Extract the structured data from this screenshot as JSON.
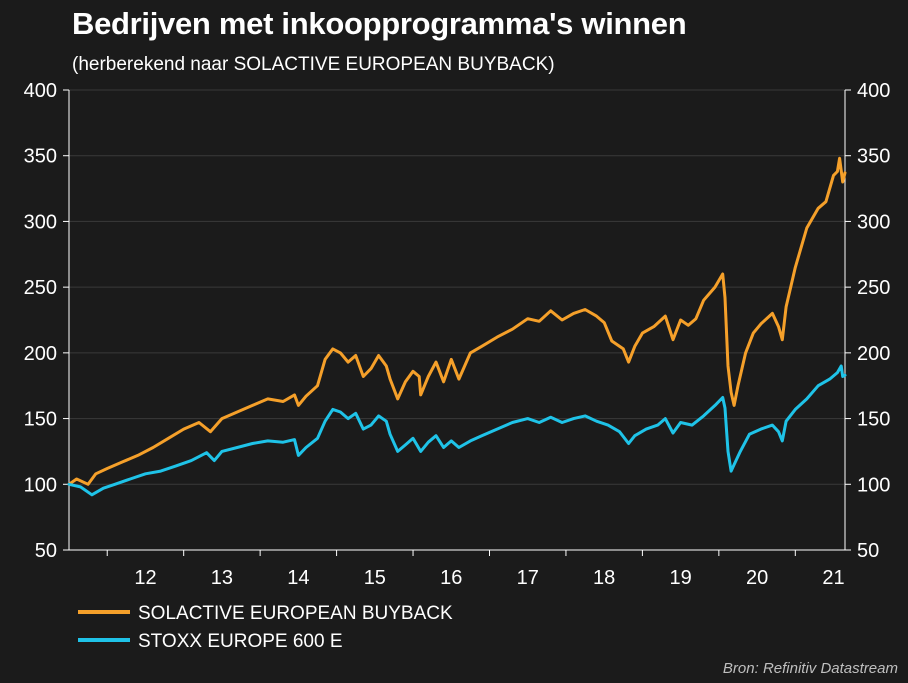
{
  "title": "Bedrijven met inkoopprogramma's winnen",
  "subtitle": "(herberekend naar SOLACTIVE EUROPEAN BUYBACK)",
  "source": "Bron: Refinitiv Datastream",
  "chart_data": {
    "type": "line",
    "x_ticks": [
      "12",
      "13",
      "14",
      "15",
      "16",
      "17",
      "18",
      "19",
      "20",
      "21"
    ],
    "xlim": [
      2011.5,
      2021.65
    ],
    "ylim": [
      50,
      400
    ],
    "y_ticks": [
      50,
      100,
      150,
      200,
      250,
      300,
      350,
      400
    ],
    "y_axis_left": true,
    "y_axis_right": true,
    "grid": true,
    "legend_position": "bottom-left",
    "series": [
      {
        "name": "SOLACTIVE EUROPEAN BUYBACK",
        "color": "#f5a02a",
        "points": [
          [
            2011.5,
            100
          ],
          [
            2011.6,
            104
          ],
          [
            2011.75,
            100
          ],
          [
            2011.85,
            108
          ],
          [
            2012.0,
            112
          ],
          [
            2012.2,
            117
          ],
          [
            2012.4,
            122
          ],
          [
            2012.6,
            128
          ],
          [
            2012.8,
            135
          ],
          [
            2013.0,
            142
          ],
          [
            2013.2,
            147
          ],
          [
            2013.35,
            140
          ],
          [
            2013.5,
            150
          ],
          [
            2013.7,
            155
          ],
          [
            2013.9,
            160
          ],
          [
            2014.1,
            165
          ],
          [
            2014.3,
            163
          ],
          [
            2014.45,
            168
          ],
          [
            2014.5,
            160
          ],
          [
            2014.6,
            167
          ],
          [
            2014.75,
            175
          ],
          [
            2014.85,
            195
          ],
          [
            2014.95,
            203
          ],
          [
            2015.05,
            200
          ],
          [
            2015.15,
            193
          ],
          [
            2015.25,
            198
          ],
          [
            2015.35,
            182
          ],
          [
            2015.45,
            188
          ],
          [
            2015.55,
            198
          ],
          [
            2015.65,
            190
          ],
          [
            2015.7,
            180
          ],
          [
            2015.8,
            165
          ],
          [
            2015.9,
            178
          ],
          [
            2016.0,
            186
          ],
          [
            2016.08,
            182
          ],
          [
            2016.1,
            168
          ],
          [
            2016.2,
            182
          ],
          [
            2016.3,
            193
          ],
          [
            2016.4,
            178
          ],
          [
            2016.5,
            195
          ],
          [
            2016.6,
            180
          ],
          [
            2016.75,
            200
          ],
          [
            2016.9,
            205
          ],
          [
            2017.1,
            212
          ],
          [
            2017.3,
            218
          ],
          [
            2017.5,
            226
          ],
          [
            2017.65,
            224
          ],
          [
            2017.8,
            232
          ],
          [
            2017.95,
            225
          ],
          [
            2018.1,
            230
          ],
          [
            2018.25,
            233
          ],
          [
            2018.4,
            228
          ],
          [
            2018.5,
            223
          ],
          [
            2018.6,
            209
          ],
          [
            2018.75,
            203
          ],
          [
            2018.82,
            193
          ],
          [
            2018.9,
            205
          ],
          [
            2019.0,
            215
          ],
          [
            2019.15,
            220
          ],
          [
            2019.3,
            228
          ],
          [
            2019.4,
            210
          ],
          [
            2019.5,
            225
          ],
          [
            2019.6,
            221
          ],
          [
            2019.7,
            226
          ],
          [
            2019.8,
            240
          ],
          [
            2019.95,
            250
          ],
          [
            2020.05,
            260
          ],
          [
            2020.08,
            242
          ],
          [
            2020.12,
            190
          ],
          [
            2020.16,
            170
          ],
          [
            2020.2,
            160
          ],
          [
            2020.25,
            175
          ],
          [
            2020.35,
            200
          ],
          [
            2020.45,
            215
          ],
          [
            2020.55,
            222
          ],
          [
            2020.7,
            230
          ],
          [
            2020.78,
            220
          ],
          [
            2020.83,
            210
          ],
          [
            2020.88,
            235
          ],
          [
            2021.0,
            265
          ],
          [
            2021.15,
            295
          ],
          [
            2021.3,
            310
          ],
          [
            2021.4,
            315
          ],
          [
            2021.5,
            335
          ],
          [
            2021.55,
            338
          ],
          [
            2021.58,
            348
          ],
          [
            2021.62,
            330
          ],
          [
            2021.65,
            337
          ]
        ]
      },
      {
        "name": "STOXX EUROPE 600 E",
        "color": "#1fc3e8",
        "points": [
          [
            2011.5,
            100
          ],
          [
            2011.65,
            98
          ],
          [
            2011.8,
            92
          ],
          [
            2011.95,
            97
          ],
          [
            2012.1,
            100
          ],
          [
            2012.3,
            104
          ],
          [
            2012.5,
            108
          ],
          [
            2012.7,
            110
          ],
          [
            2012.9,
            114
          ],
          [
            2013.1,
            118
          ],
          [
            2013.3,
            124
          ],
          [
            2013.4,
            118
          ],
          [
            2013.5,
            125
          ],
          [
            2013.7,
            128
          ],
          [
            2013.9,
            131
          ],
          [
            2014.1,
            133
          ],
          [
            2014.3,
            132
          ],
          [
            2014.45,
            134
          ],
          [
            2014.5,
            122
          ],
          [
            2014.6,
            128
          ],
          [
            2014.75,
            135
          ],
          [
            2014.85,
            148
          ],
          [
            2014.95,
            157
          ],
          [
            2015.05,
            155
          ],
          [
            2015.15,
            150
          ],
          [
            2015.25,
            154
          ],
          [
            2015.35,
            142
          ],
          [
            2015.45,
            145
          ],
          [
            2015.55,
            152
          ],
          [
            2015.65,
            148
          ],
          [
            2015.7,
            138
          ],
          [
            2015.8,
            125
          ],
          [
            2015.9,
            130
          ],
          [
            2016.0,
            135
          ],
          [
            2016.1,
            125
          ],
          [
            2016.2,
            132
          ],
          [
            2016.3,
            137
          ],
          [
            2016.4,
            128
          ],
          [
            2016.5,
            133
          ],
          [
            2016.6,
            128
          ],
          [
            2016.75,
            133
          ],
          [
            2016.9,
            137
          ],
          [
            2017.1,
            142
          ],
          [
            2017.3,
            147
          ],
          [
            2017.5,
            150
          ],
          [
            2017.65,
            147
          ],
          [
            2017.8,
            151
          ],
          [
            2017.95,
            147
          ],
          [
            2018.1,
            150
          ],
          [
            2018.25,
            152
          ],
          [
            2018.4,
            148
          ],
          [
            2018.55,
            145
          ],
          [
            2018.7,
            140
          ],
          [
            2018.82,
            131
          ],
          [
            2018.9,
            137
          ],
          [
            2019.05,
            142
          ],
          [
            2019.2,
            145
          ],
          [
            2019.3,
            150
          ],
          [
            2019.4,
            139
          ],
          [
            2019.5,
            147
          ],
          [
            2019.65,
            145
          ],
          [
            2019.8,
            152
          ],
          [
            2019.95,
            160
          ],
          [
            2020.05,
            166
          ],
          [
            2020.08,
            158
          ],
          [
            2020.12,
            125
          ],
          [
            2020.16,
            110
          ],
          [
            2020.2,
            115
          ],
          [
            2020.28,
            125
          ],
          [
            2020.4,
            138
          ],
          [
            2020.55,
            142
          ],
          [
            2020.7,
            145
          ],
          [
            2020.78,
            140
          ],
          [
            2020.83,
            133
          ],
          [
            2020.88,
            148
          ],
          [
            2021.0,
            157
          ],
          [
            2021.15,
            165
          ],
          [
            2021.3,
            175
          ],
          [
            2021.45,
            180
          ],
          [
            2021.55,
            185
          ],
          [
            2021.6,
            190
          ],
          [
            2021.62,
            182
          ],
          [
            2021.65,
            183
          ]
        ]
      }
    ]
  }
}
